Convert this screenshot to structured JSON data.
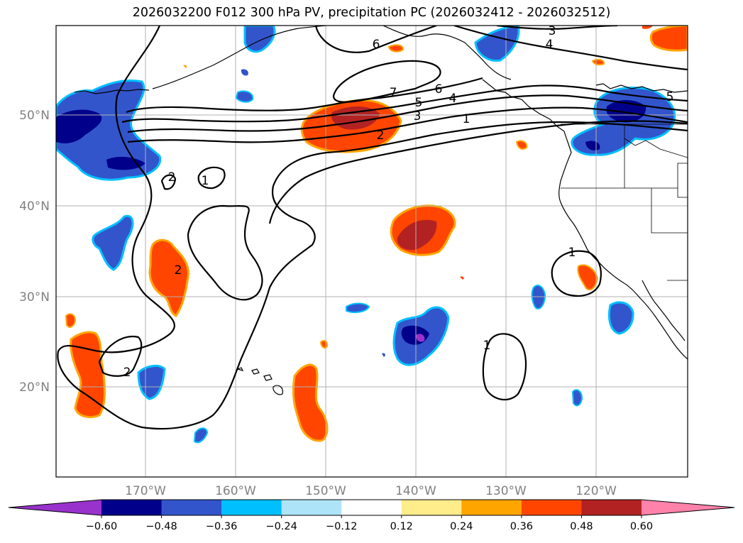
{
  "title": "2026032200 F012 300 hPa PV, precipitation PC (2026032412 - 2026032512)",
  "latitude_labels": [
    "50°N",
    "40°N",
    "30°N",
    "20°N"
  ],
  "longitude_labels": [
    "170°W",
    "160°W",
    "150°W",
    "140°W",
    "130°W",
    "120°W"
  ],
  "colorbar": {
    "ticks": [
      "−0.60",
      "−0.48",
      "−0.36",
      "−0.24",
      "−0.12",
      "0.12",
      "0.24",
      "0.36",
      "0.48",
      "0.60"
    ],
    "colors": [
      "#9932cc",
      "#00008b",
      "#3355cc",
      "#00bfff",
      "#aee4f8",
      "#ffffff",
      "#ffec8b",
      "#ffa500",
      "#ff4500",
      "#b22222",
      "#ff82ab"
    ]
  },
  "contour_labels": {
    "c7": "7",
    "c6a": "6",
    "c6b": "6",
    "c5a": "5",
    "c5b": "5",
    "c4a": "4",
    "c4b": "4",
    "c3a": "3",
    "c3b": "3",
    "c2a": "2",
    "c2b": "2",
    "c2c": "2",
    "c2d": "2",
    "c1a": "1",
    "c1b": "1",
    "c1c": "1",
    "c1d": "1"
  }
}
